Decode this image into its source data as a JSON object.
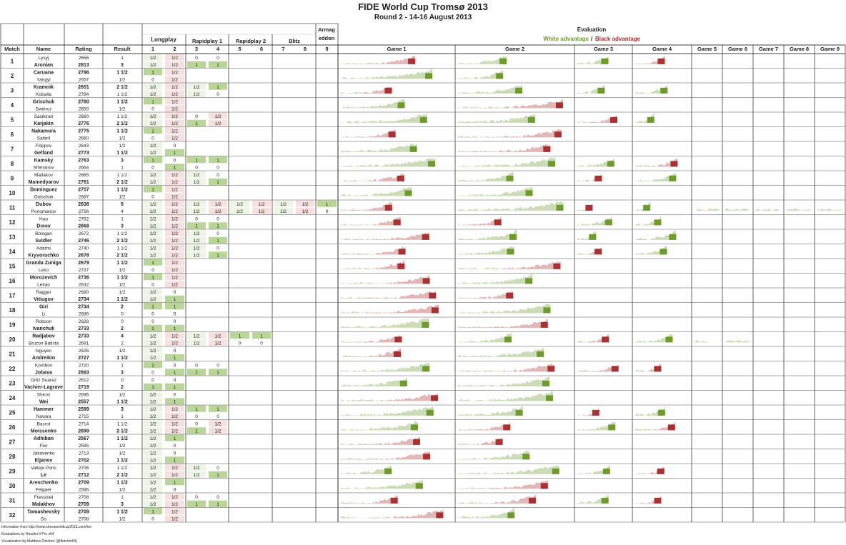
{
  "title": "FIDE World Cup Tromsø 2013",
  "subtitle": "Round 2 - 14-16 August 2013",
  "header": {
    "match": "Match",
    "name": "Name",
    "rating": "Rating",
    "result": "Result",
    "groups": [
      "Longplay",
      "Rapidplay 1",
      "Rapidplay 2",
      "Blitz",
      "Armag eddon"
    ],
    "game_numbers": [
      "1",
      "2",
      "3",
      "4",
      "5",
      "6",
      "7",
      "8",
      "9"
    ],
    "evaluation": "Evaluation",
    "legend_white": "White advantage",
    "legend_sep": "/",
    "legend_black": "Black advantage",
    "eval_games": [
      "Game 1",
      "Game 2",
      "Game 3",
      "Game 4",
      "Game 5",
      "Game 6",
      "Game 7",
      "Game 8",
      "Game 9"
    ]
  },
  "colors": {
    "white_adv": "#6e9a2e",
    "black_adv": "#a83232",
    "win_cell": "#b9d597",
    "loss_cell": "#e3a1a1",
    "draw_cell": "#f7e0e0"
  },
  "matches": [
    {
      "no": "1",
      "players": [
        {
          "name": "Lysyj",
          "rating": "2656",
          "result": "1",
          "bold": false,
          "games": [
            "1/2",
            "1/2",
            "0",
            "0"
          ]
        },
        {
          "name": "Aronian",
          "rating": "2813",
          "result": "3",
          "bold": true,
          "games": [
            "1/2",
            "1/2",
            "1",
            "1"
          ]
        }
      ]
    },
    {
      "no": "2",
      "players": [
        {
          "name": "Caruana",
          "rating": "2796",
          "result": "1 1/2",
          "bold": true,
          "games": [
            "1",
            "1/2"
          ]
        },
        {
          "name": "Yangyi",
          "rating": "2657",
          "result": "1/2",
          "bold": false,
          "games": [
            "0",
            "1/2"
          ]
        }
      ]
    },
    {
      "no": "3",
      "players": [
        {
          "name": "Kramnik",
          "rating": "2651",
          "result": "2 1/2",
          "bold": true,
          "games": [
            "1/2",
            "1/2",
            "1/2",
            "1"
          ]
        },
        {
          "name": "Kobalia",
          "rating": "2784",
          "result": "1 1/2",
          "bold": false,
          "games": [
            "1/2",
            "1/2",
            "1/2",
            "0"
          ]
        }
      ]
    },
    {
      "no": "4",
      "players": [
        {
          "name": "Grischuk",
          "rating": "2780",
          "result": "1 1/2",
          "bold": true,
          "games": [
            "1",
            "1/2"
          ]
        },
        {
          "name": "Swiercz",
          "rating": "2650",
          "result": "1/2",
          "bold": false,
          "games": [
            "0",
            "1/2"
          ]
        }
      ]
    },
    {
      "no": "5",
      "players": [
        {
          "name": "Sasikiran",
          "rating": "2660",
          "result": "1 1/2",
          "bold": false,
          "games": [
            "1/2",
            "1/2",
            "0",
            "1/2"
          ]
        },
        {
          "name": "Karjakin",
          "rating": "2776",
          "result": "2 1/2",
          "bold": true,
          "games": [
            "1/2",
            "1/2",
            "1",
            "1/2"
          ]
        }
      ]
    },
    {
      "no": "6",
      "players": [
        {
          "name": "Nakamura",
          "rating": "2775",
          "result": "1 1/2",
          "bold": true,
          "games": [
            "1",
            "1/2"
          ]
        },
        {
          "name": "Safarli",
          "rating": "2660",
          "result": "1/2",
          "bold": false,
          "games": [
            "0",
            "1/2"
          ]
        }
      ]
    },
    {
      "no": "7",
      "players": [
        {
          "name": "Filippov",
          "rating": "2643",
          "result": "1/2",
          "bold": false,
          "games": [
            "1/2",
            "0"
          ]
        },
        {
          "name": "Gelfand",
          "rating": "2773",
          "result": "1 1/2",
          "bold": true,
          "games": [
            "1/2",
            "1"
          ]
        }
      ]
    },
    {
      "no": "8",
      "players": [
        {
          "name": "Kamsky",
          "rating": "2763",
          "result": "3",
          "bold": true,
          "games": [
            "1",
            "0",
            "1",
            "1"
          ]
        },
        {
          "name": "Shimanov",
          "rating": "2664",
          "result": "1",
          "bold": false,
          "games": [
            "0",
            "1",
            "0",
            "0"
          ]
        }
      ]
    },
    {
      "no": "9",
      "players": [
        {
          "name": "Matlakov",
          "rating": "2665",
          "result": "1 1/2",
          "bold": false,
          "games": [
            "1/2",
            "1/2",
            "1/2",
            "0"
          ]
        },
        {
          "name": "Mamedyarov",
          "rating": "2761",
          "result": "2 1/2",
          "bold": true,
          "games": [
            "1/2",
            "1/2",
            "1/2",
            "1"
          ]
        }
      ]
    },
    {
      "no": "10",
      "players": [
        {
          "name": "Dominguez",
          "rating": "2757",
          "result": "1 1/2",
          "bold": true,
          "games": [
            "1",
            "1/2"
          ]
        },
        {
          "name": "Onischuk",
          "rating": "2667",
          "result": "1/2",
          "bold": false,
          "games": [
            "0",
            "1/2"
          ]
        }
      ]
    },
    {
      "no": "11",
      "players": [
        {
          "name": "Dubov",
          "rating": "2638",
          "result": "5",
          "bold": true,
          "games": [
            "1/2",
            "1/2",
            "1/2",
            "1/2",
            "1/2",
            "1/2",
            "1/2",
            "1/2",
            "1"
          ]
        },
        {
          "name": "Ponomariov",
          "rating": "2756",
          "result": "4",
          "bold": false,
          "games": [
            "1/2",
            "1/2",
            "1/2",
            "1/2",
            "1/2",
            "1/2",
            "1/2",
            "1/2",
            "0"
          ]
        }
      ]
    },
    {
      "no": "12",
      "players": [
        {
          "name": "Hao",
          "rating": "2752",
          "result": "1",
          "bold": false,
          "games": [
            "1/2",
            "1/2",
            "0",
            "0"
          ]
        },
        {
          "name": "Dreev",
          "rating": "2668",
          "result": "3",
          "bold": true,
          "games": [
            "1/2",
            "1/2",
            "1",
            "1"
          ]
        }
      ]
    },
    {
      "no": "13",
      "players": [
        {
          "name": "Bologan",
          "rating": "2672",
          "result": "1 1/2",
          "bold": false,
          "games": [
            "1/2",
            "1/2",
            "1/2",
            "0"
          ]
        },
        {
          "name": "Svidler",
          "rating": "2746",
          "result": "2 1/2",
          "bold": true,
          "games": [
            "1/2",
            "1/2",
            "1/2",
            "1"
          ]
        }
      ]
    },
    {
      "no": "14",
      "players": [
        {
          "name": "Adams",
          "rating": "2740",
          "result": "1 1/2",
          "bold": false,
          "games": [
            "1/2",
            "1/2",
            "1/2",
            "0"
          ]
        },
        {
          "name": "Kryvoruchko",
          "rating": "2678",
          "result": "2 1/2",
          "bold": true,
          "games": [
            "1/2",
            "1/2",
            "1/2",
            "1"
          ]
        }
      ]
    },
    {
      "no": "15",
      "players": [
        {
          "name": "Granda Zuniga",
          "rating": "2679",
          "result": "1 1/2",
          "bold": true,
          "games": [
            "1",
            "1/2"
          ]
        },
        {
          "name": "Leko",
          "rating": "2737",
          "result": "1/2",
          "bold": false,
          "games": [
            "0",
            "1/2"
          ]
        }
      ]
    },
    {
      "no": "16",
      "players": [
        {
          "name": "Morozevich",
          "rating": "2736",
          "result": "1 1/2",
          "bold": true,
          "games": [
            "1",
            "1/2"
          ]
        },
        {
          "name": "Leitao",
          "rating": "2632",
          "result": "1/2",
          "bold": false,
          "games": [
            "0",
            "1/2"
          ]
        }
      ]
    },
    {
      "no": "17",
      "players": [
        {
          "name": "Ragger",
          "rating": "2680",
          "result": "1/2",
          "bold": false,
          "games": [
            "1/2",
            "0"
          ]
        },
        {
          "name": "Vitiugov",
          "rating": "2734",
          "result": "1 1/2",
          "bold": true,
          "games": [
            "1/2",
            "1"
          ]
        }
      ]
    },
    {
      "no": "18",
      "players": [
        {
          "name": "Giri",
          "rating": "2734",
          "result": "2",
          "bold": true,
          "games": [
            "1",
            "1"
          ]
        },
        {
          "name": "Li",
          "rating": "2686",
          "result": "0",
          "bold": false,
          "games": [
            "0",
            "0"
          ]
        }
      ]
    },
    {
      "no": "19",
      "players": [
        {
          "name": "Robson",
          "rating": "2628",
          "result": "0",
          "bold": false,
          "games": [
            "0",
            "0"
          ]
        },
        {
          "name": "Ivanchuk",
          "rating": "2733",
          "result": "2",
          "bold": true,
          "games": [
            "1",
            "1"
          ]
        }
      ]
    },
    {
      "no": "20",
      "players": [
        {
          "name": "Radjabov",
          "rating": "2733",
          "result": "4",
          "bold": true,
          "games": [
            "1/2",
            "1/2",
            "1/2",
            "1/2",
            "1",
            "1"
          ]
        },
        {
          "name": "Bruzon Batista",
          "rating": "2691",
          "result": "2",
          "bold": false,
          "games": [
            "1/2",
            "1/2",
            "1/2",
            "1/2",
            "0",
            "0"
          ]
        }
      ]
    },
    {
      "no": "21",
      "players": [
        {
          "name": "Nguyen",
          "rating": "2625",
          "result": "1/2",
          "bold": false,
          "games": [
            "1/2",
            "0"
          ]
        },
        {
          "name": "Andreikin",
          "rating": "2727",
          "result": "1 1/2",
          "bold": true,
          "games": [
            "1/2",
            "1"
          ]
        }
      ]
    },
    {
      "no": "22",
      "players": [
        {
          "name": "Korobov",
          "rating": "2720",
          "result": "1",
          "bold": false,
          "games": [
            "1",
            "0",
            "0",
            "0"
          ]
        },
        {
          "name": "Jobava",
          "rating": "2693",
          "result": "3",
          "bold": true,
          "games": [
            "0",
            "1",
            "1",
            "1"
          ]
        }
      ]
    },
    {
      "no": "23",
      "players": [
        {
          "name": "Ortiz Suarez",
          "rating": "2612",
          "result": "0",
          "bold": false,
          "games": [
            "0",
            "0"
          ]
        },
        {
          "name": "Vachier-Lagrave",
          "rating": "2719",
          "result": "2",
          "bold": true,
          "games": [
            "1",
            "1"
          ]
        }
      ]
    },
    {
      "no": "24",
      "players": [
        {
          "name": "Shirov",
          "rating": "2696",
          "result": "1/2",
          "bold": false,
          "games": [
            "1/2",
            "0"
          ]
        },
        {
          "name": "Wei",
          "rating": "2557",
          "result": "1 1/2",
          "bold": true,
          "games": [
            "1/2",
            "1"
          ]
        }
      ]
    },
    {
      "no": "25",
      "players": [
        {
          "name": "Hammer",
          "rating": "2599",
          "result": "3",
          "bold": true,
          "games": [
            "1/2",
            "1/2",
            "1",
            "1"
          ]
        },
        {
          "name": "Navara",
          "rating": "2715",
          "result": "1",
          "bold": false,
          "games": [
            "1/2",
            "1/2",
            "0",
            "0"
          ]
        }
      ]
    },
    {
      "no": "26",
      "players": [
        {
          "name": "Bacrot",
          "rating": "2714",
          "result": "1 1/2",
          "bold": false,
          "games": [
            "1/2",
            "1/2",
            "0",
            "1/2"
          ]
        },
        {
          "name": "Moissenko",
          "rating": "2699",
          "result": "2 1/2",
          "bold": true,
          "games": [
            "1/2",
            "1/2",
            "1",
            "1/2"
          ]
        }
      ]
    },
    {
      "no": "27",
      "players": [
        {
          "name": "Adhiban",
          "rating": "2567",
          "result": "1 1/2",
          "bold": true,
          "games": [
            "1/2",
            "1"
          ]
        },
        {
          "name": "Fier",
          "rating": "2595",
          "result": "1/2",
          "bold": false,
          "games": [
            "1/2",
            "0"
          ]
        }
      ]
    },
    {
      "no": "28",
      "players": [
        {
          "name": "Jakovenko",
          "rating": "2713",
          "result": "1/2",
          "bold": false,
          "games": [
            "1/2",
            "0"
          ]
        },
        {
          "name": "Eljanov",
          "rating": "2702",
          "result": "1 1/2",
          "bold": true,
          "games": [
            "1/2",
            "1"
          ]
        }
      ]
    },
    {
      "no": "29",
      "players": [
        {
          "name": "Vallejo Pons",
          "rating": "2706",
          "result": "1 1/2",
          "bold": false,
          "games": [
            "1/2",
            "1/2",
            "1/2",
            "0"
          ]
        },
        {
          "name": "Le",
          "rating": "2712",
          "result": "2 1/2",
          "bold": true,
          "games": [
            "1/2",
            "1/2",
            "1/2",
            "1"
          ]
        }
      ]
    },
    {
      "no": "30",
      "players": [
        {
          "name": "Areschenko",
          "rating": "2709",
          "result": "1 1/2",
          "bold": true,
          "games": [
            "1/2",
            "1"
          ]
        },
        {
          "name": "Felgaer",
          "rating": "2586",
          "result": "1/2",
          "bold": false,
          "games": [
            "1/2",
            "0"
          ]
        }
      ]
    },
    {
      "no": "31",
      "players": [
        {
          "name": "Fressinet",
          "rating": "2708",
          "result": "1",
          "bold": false,
          "games": [
            "1/2",
            "1/2",
            "0",
            "0"
          ]
        },
        {
          "name": "Malakhov",
          "rating": "2709",
          "result": "3",
          "bold": true,
          "games": [
            "1/2",
            "1/2",
            "1",
            "1"
          ]
        }
      ]
    },
    {
      "no": "32",
      "players": [
        {
          "name": "Tomashevsky",
          "rating": "2709",
          "result": "1 1/2",
          "bold": true,
          "games": [
            "1",
            "1/2"
          ]
        },
        {
          "name": "So",
          "rating": "2708",
          "result": "1/2",
          "bold": false,
          "games": [
            "0",
            "1/2"
          ]
        }
      ]
    }
  ],
  "footer": [
    "Information from http://www.chessworldcup2013.com/live",
    "Evaluations by Houdini 3 Pro x64",
    "Visualization by Matthew Fletcher (@fletchm64)"
  ],
  "chart_data": {
    "type": "area",
    "title": "Evaluation",
    "legend": [
      "White advantage",
      "Black advantage"
    ],
    "games_per_match": [
      [
        1,
        1,
        1,
        1
      ],
      [
        1,
        1
      ],
      [
        1,
        1,
        1,
        1
      ],
      [
        1,
        1
      ],
      [
        1,
        1,
        1,
        1
      ],
      [
        1,
        1
      ],
      [
        1,
        1
      ],
      [
        1,
        1,
        1,
        1
      ],
      [
        1,
        1,
        1,
        1
      ],
      [
        1,
        1
      ],
      [
        1,
        1,
        1,
        1,
        1,
        1,
        1,
        1,
        1
      ],
      [
        1,
        1,
        1,
        1
      ],
      [
        1,
        1,
        1,
        1
      ],
      [
        1,
        1,
        1,
        1
      ],
      [
        1,
        1
      ],
      [
        1,
        1
      ],
      [
        1,
        1
      ],
      [
        1,
        1
      ],
      [
        1,
        1
      ],
      [
        1,
        1,
        1,
        1,
        1,
        1
      ],
      [
        1,
        1
      ],
      [
        1,
        1,
        1,
        1
      ],
      [
        1,
        1
      ],
      [
        1,
        1
      ],
      [
        1,
        1,
        1,
        1
      ],
      [
        1,
        1,
        1,
        1
      ],
      [
        1,
        1
      ],
      [
        1,
        1
      ],
      [
        1,
        1,
        1,
        1
      ],
      [
        1,
        1
      ],
      [
        1,
        1,
        1,
        1
      ],
      [
        1,
        1
      ]
    ]
  }
}
